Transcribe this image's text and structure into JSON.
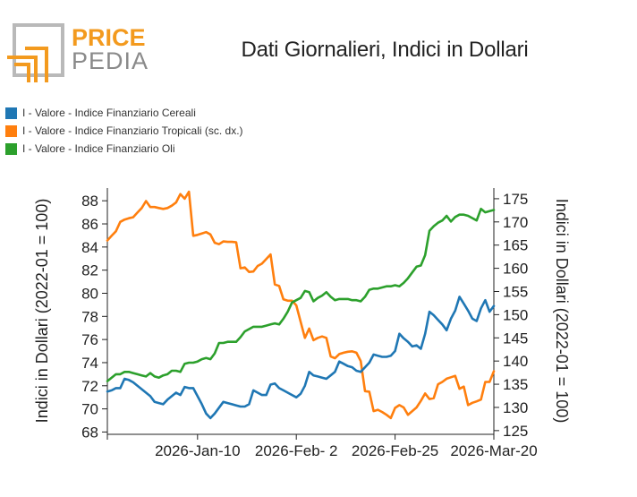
{
  "logo": {
    "line1": "PRICE",
    "line2": "PEDIA"
  },
  "colors": {
    "cereali": "#1f77b4",
    "tropicali": "#ff7f0e",
    "oli": "#2ca02c",
    "logo_orange": "#f39a1e",
    "logo_gray": "#8a8a8a"
  },
  "chart_data": {
    "type": "line",
    "title": "Dati Giornalieri, Indici in Dollari",
    "ylabel": "Indici in Dollari (2022-01 = 100)",
    "y2label": "Indici in Dollari (2022-01 = 100)",
    "ylim": [
      67.8,
      89.1
    ],
    "y2lim": [
      124.2,
      177.3
    ],
    "yticks": [
      68,
      70,
      72,
      74,
      76,
      78,
      80,
      82,
      84,
      86,
      88
    ],
    "y2ticks": [
      125,
      130,
      135,
      140,
      145,
      150,
      155,
      160,
      165,
      170,
      175
    ],
    "xticks": [
      {
        "day": 0,
        "label": ""
      },
      {
        "day": 21,
        "label": "2026-Jan-10"
      },
      {
        "day": 44,
        "label": "2026-Feb- 2"
      },
      {
        "day": 67,
        "label": "2026-Feb-25"
      },
      {
        "day": 90,
        "label": "2026-Mar-20"
      }
    ],
    "series": [
      {
        "name": "I - Valore - Indice Finanziario Cereali",
        "color": "#1f77b4",
        "axis": "left",
        "x": [
          0,
          1,
          2,
          3,
          4,
          5,
          6,
          7,
          8,
          9,
          10,
          11,
          12,
          13,
          14,
          15,
          16,
          17,
          18,
          19,
          20,
          21,
          22,
          23,
          24,
          25,
          26,
          27,
          28,
          29,
          30,
          31,
          32,
          33,
          34,
          35,
          36,
          37,
          38,
          39,
          40,
          41,
          42,
          43,
          44,
          45,
          46,
          47,
          48,
          49,
          50,
          51,
          52,
          53,
          54,
          55,
          56,
          57,
          58,
          59,
          60,
          61,
          62,
          63,
          64,
          65,
          66,
          67,
          68,
          69,
          70,
          71,
          72,
          73,
          74,
          75,
          76,
          77,
          78,
          79,
          80,
          81,
          82,
          83,
          84,
          85,
          86,
          87,
          88,
          89,
          90
        ],
        "values": [
          71.5,
          71.6,
          71.8,
          71.8,
          72.6,
          72.5,
          72.3,
          72.0,
          71.7,
          71.4,
          71.1,
          70.6,
          70.5,
          70.4,
          70.8,
          71.1,
          71.4,
          71.2,
          71.9,
          71.8,
          71.8,
          71.1,
          70.4,
          69.6,
          69.2,
          69.6,
          70.1,
          70.6,
          70.5,
          70.4,
          70.3,
          70.2,
          70.2,
          70.4,
          71.6,
          71.4,
          71.2,
          71.2,
          72.1,
          72.2,
          71.8,
          71.6,
          71.4,
          71.2,
          71.0,
          71.3,
          72.0,
          73.2,
          72.9,
          72.8,
          72.7,
          72.6,
          72.9,
          73.2,
          74.1,
          73.9,
          73.7,
          73.6,
          73.3,
          73.2,
          73.6,
          74.0,
          74.7,
          74.6,
          74.5,
          74.5,
          74.6,
          75.0,
          76.5,
          76.1,
          75.8,
          75.4,
          75.5,
          75.2,
          76.5,
          78.4,
          78.1,
          77.7,
          77.3,
          76.8,
          77.8,
          78.5,
          79.7,
          79.1,
          78.5,
          77.8,
          77.6,
          78.7,
          79.4,
          78.4,
          78.9
        ]
      },
      {
        "name": "I - Valore - Indice Finanziario Tropicali (sc. dx.)",
        "color": "#ff7f0e",
        "axis": "right",
        "x": [
          0,
          1,
          2,
          3,
          4,
          5,
          6,
          7,
          8,
          9,
          10,
          11,
          12,
          13,
          14,
          15,
          16,
          17,
          18,
          19,
          20,
          21,
          22,
          23,
          24,
          25,
          26,
          27,
          28,
          29,
          30,
          31,
          32,
          33,
          34,
          35,
          36,
          37,
          38,
          39,
          40,
          41,
          42,
          43,
          44,
          45,
          46,
          47,
          48,
          49,
          50,
          51,
          52,
          53,
          54,
          55,
          56,
          57,
          58,
          59,
          60,
          61,
          62,
          63,
          64,
          65,
          66,
          67,
          68,
          69,
          70,
          71,
          72,
          73,
          74,
          75,
          76,
          77,
          78,
          79,
          80,
          81,
          82,
          83,
          84,
          85,
          86,
          87,
          88,
          89,
          90
        ],
        "values": [
          166.0,
          167.0,
          168.0,
          170.0,
          170.5,
          170.8,
          171.0,
          172.0,
          173.0,
          174.5,
          173.2,
          173.2,
          173.0,
          172.8,
          173.0,
          173.5,
          174.2,
          176.0,
          175.0,
          176.5,
          167.0,
          167.2,
          167.5,
          167.8,
          167.3,
          165.5,
          165.2,
          165.8,
          165.7,
          165.7,
          165.6,
          160.0,
          160.2,
          159.2,
          159.3,
          160.5,
          161.0,
          162.0,
          163.0,
          156.5,
          156.2,
          153.3,
          153.0,
          153.0,
          152.0,
          148.5,
          145.0,
          147.0,
          144.5,
          145.0,
          145.3,
          145.0,
          141.0,
          140.6,
          141.5,
          141.8,
          142.0,
          142.1,
          141.8,
          140.0,
          133.5,
          133.4,
          129.2,
          129.5,
          129.0,
          128.4,
          127.7,
          129.9,
          130.5,
          130.0,
          128.4,
          129.2,
          130.0,
          131.4,
          133.0,
          131.8,
          132.0,
          135.0,
          135.5,
          136.2,
          136.5,
          136.8,
          134.0,
          134.5,
          130.5,
          131.0,
          131.3,
          131.7,
          135.5,
          135.5,
          137.8
        ]
      },
      {
        "name": "I - Valore - Indice Finanziario Oli",
        "color": "#2ca02c",
        "axis": "left",
        "x": [
          0,
          1,
          2,
          3,
          4,
          5,
          6,
          7,
          8,
          9,
          10,
          11,
          12,
          13,
          14,
          15,
          16,
          17,
          18,
          19,
          20,
          21,
          22,
          23,
          24,
          25,
          26,
          27,
          28,
          29,
          30,
          31,
          32,
          33,
          34,
          35,
          36,
          37,
          38,
          39,
          40,
          41,
          42,
          43,
          44,
          45,
          46,
          47,
          48,
          49,
          50,
          51,
          52,
          53,
          54,
          55,
          56,
          57,
          58,
          59,
          60,
          61,
          62,
          63,
          64,
          65,
          66,
          67,
          68,
          69,
          70,
          71,
          72,
          73,
          74,
          75,
          76,
          77,
          78,
          79,
          80,
          81,
          82,
          83,
          84,
          85,
          86,
          87,
          88,
          89,
          90
        ],
        "values": [
          72.4,
          72.7,
          73.0,
          73.0,
          73.2,
          73.2,
          73.1,
          73.0,
          72.9,
          72.8,
          73.1,
          72.8,
          72.7,
          72.9,
          73.0,
          73.3,
          73.3,
          73.2,
          73.9,
          74.0,
          74.0,
          74.1,
          74.3,
          74.4,
          74.3,
          74.8,
          75.7,
          75.7,
          75.8,
          75.8,
          75.8,
          76.2,
          76.7,
          76.9,
          77.1,
          77.1,
          77.1,
          77.2,
          77.3,
          77.4,
          77.3,
          77.8,
          78.4,
          79.2,
          79.4,
          79.6,
          80.2,
          80.1,
          79.3,
          79.6,
          79.8,
          80.1,
          79.7,
          79.4,
          79.5,
          79.5,
          79.5,
          79.4,
          79.4,
          79.3,
          79.7,
          80.3,
          80.4,
          80.4,
          80.5,
          80.6,
          80.6,
          80.7,
          80.6,
          80.9,
          81.3,
          81.8,
          82.3,
          82.4,
          83.3,
          85.4,
          85.8,
          86.1,
          86.3,
          86.7,
          86.2,
          86.6,
          86.8,
          86.8,
          86.7,
          86.5,
          86.3,
          87.3,
          87.0,
          87.1,
          87.2
        ]
      }
    ]
  }
}
